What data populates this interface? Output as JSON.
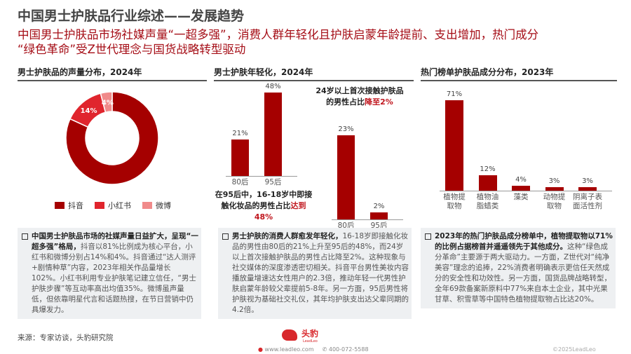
{
  "title": "中国男士护肤品行业综述——发展趋势",
  "subtitle": [
    "中国男士护肤品市场社媒声量“一超多强”，消费人群年轻化且护肤启蒙年龄提前、支出增加，热门成分",
    "“绿色革命”受Z世代理念与国货战略转型驱动"
  ],
  "colors": {
    "accent": "#a50d16",
    "bar": "#a50000",
    "douyin": "#a50000",
    "xiaohongshu": "#e0252d",
    "weibo": "#f08a8a"
  },
  "panels": [
    {
      "header": "男士护肤品的声量分布，2024年",
      "text_bold": "中国男士护肤品市场的社媒声量日益扩大，呈现“一超多强”格局，",
      "text": "抖音以81%比例成为核心平台，小红书和微博分别占14%和4%。抖音通过“达人测评+剧情种草”内容，2023年相关作品量增长102%。小红书利用专业护肤笔记建立信任，“男士护肤步骤”等互动率高出均值35%。微博虽声量低，但依靠明星代言和话题热搜，在节日营销中仍具爆发力。"
    },
    {
      "header": "男士护肤年轻化，2024年",
      "text_bold": "男士护肤的消费人群愈发年轻化，",
      "text": "16-18岁即接触化妆品的男性由80后的21%上升至95后的48%，而24岁以上首次接触护肤品的男性占比降至2%。这种现象与社交媒体的深度渗透密切相关。抖音平台男性美妆内容播放量增速达女性用户的2.3倍，推动年轻一代男性护肤启蒙年龄较父辈提前5-8年。另一方面，95后男性将护肤视为基础社交礼仪，其年均护肤支出达父辈同期的4.2倍。"
    },
    {
      "header": "热门榜单护肤品成分分布，2023年",
      "text_bold": "2023年的热门护肤品成分榜单中，植物提取物以71%的比例占据榜首并遥遥领先于其他成分。",
      "text": "这种“绿色成分革命”主要源于两大驱动力。一方面，Z世代对“纯净美容”理念的追捧，22%消费者明确表示更信任天然成分的安全性和功效性。另一方面，国货品牌战略转型，全年69款备案新原料中77%来自本土企业，其中光果甘草、积雪草等中国特色植物提取物占比达20%。"
    }
  ],
  "chart_data": [
    {
      "type": "pie",
      "donut": true,
      "categories": [
        "抖音",
        "小红书",
        "微博"
      ],
      "values": [
        81,
        14,
        4
      ],
      "labels": [
        "81%",
        "14%",
        "4%"
      ]
    },
    {
      "type": "bar",
      "categories": [
        "80后",
        "95后"
      ],
      "values": [
        21,
        48
      ],
      "labels": [
        "21%",
        "48%"
      ],
      "annotation": {
        "text": "在95后中，16-18岁中即接触化妆品的男性占比",
        "highlight": "达到48%"
      }
    },
    {
      "type": "bar",
      "categories": [
        "80后",
        "95后"
      ],
      "values": [
        23,
        2
      ],
      "labels": [
        "23%",
        "2%"
      ],
      "annotation": {
        "text": "24岁以上首次接触护肤品的男性占比",
        "highlight": "降至2%"
      }
    },
    {
      "type": "bar",
      "categories": [
        "植物提取物",
        "植物油脂蜡类",
        "藻类",
        "动物提取物",
        "阴离子表面活性剂"
      ],
      "category_lines": [
        [
          "植物提",
          "取物"
        ],
        [
          "植物油",
          "脂蜡类"
        ],
        [
          "藻类",
          ""
        ],
        [
          "动物提",
          "取物"
        ],
        [
          "阴离子表",
          "面活性剂"
        ]
      ],
      "values": [
        71,
        12,
        4,
        3,
        3
      ],
      "labels": [
        "71%",
        "12%",
        "4%",
        "3%",
        "3%"
      ]
    }
  ],
  "source": "来源：专家访谈，头豹研究院",
  "footer": {
    "logo_cn": "头豹",
    "logo_en": "LeadLeo",
    "website": "www.leadleo.com",
    "phone": "400-072-5588",
    "copyright": "©2025LeadLeo"
  }
}
